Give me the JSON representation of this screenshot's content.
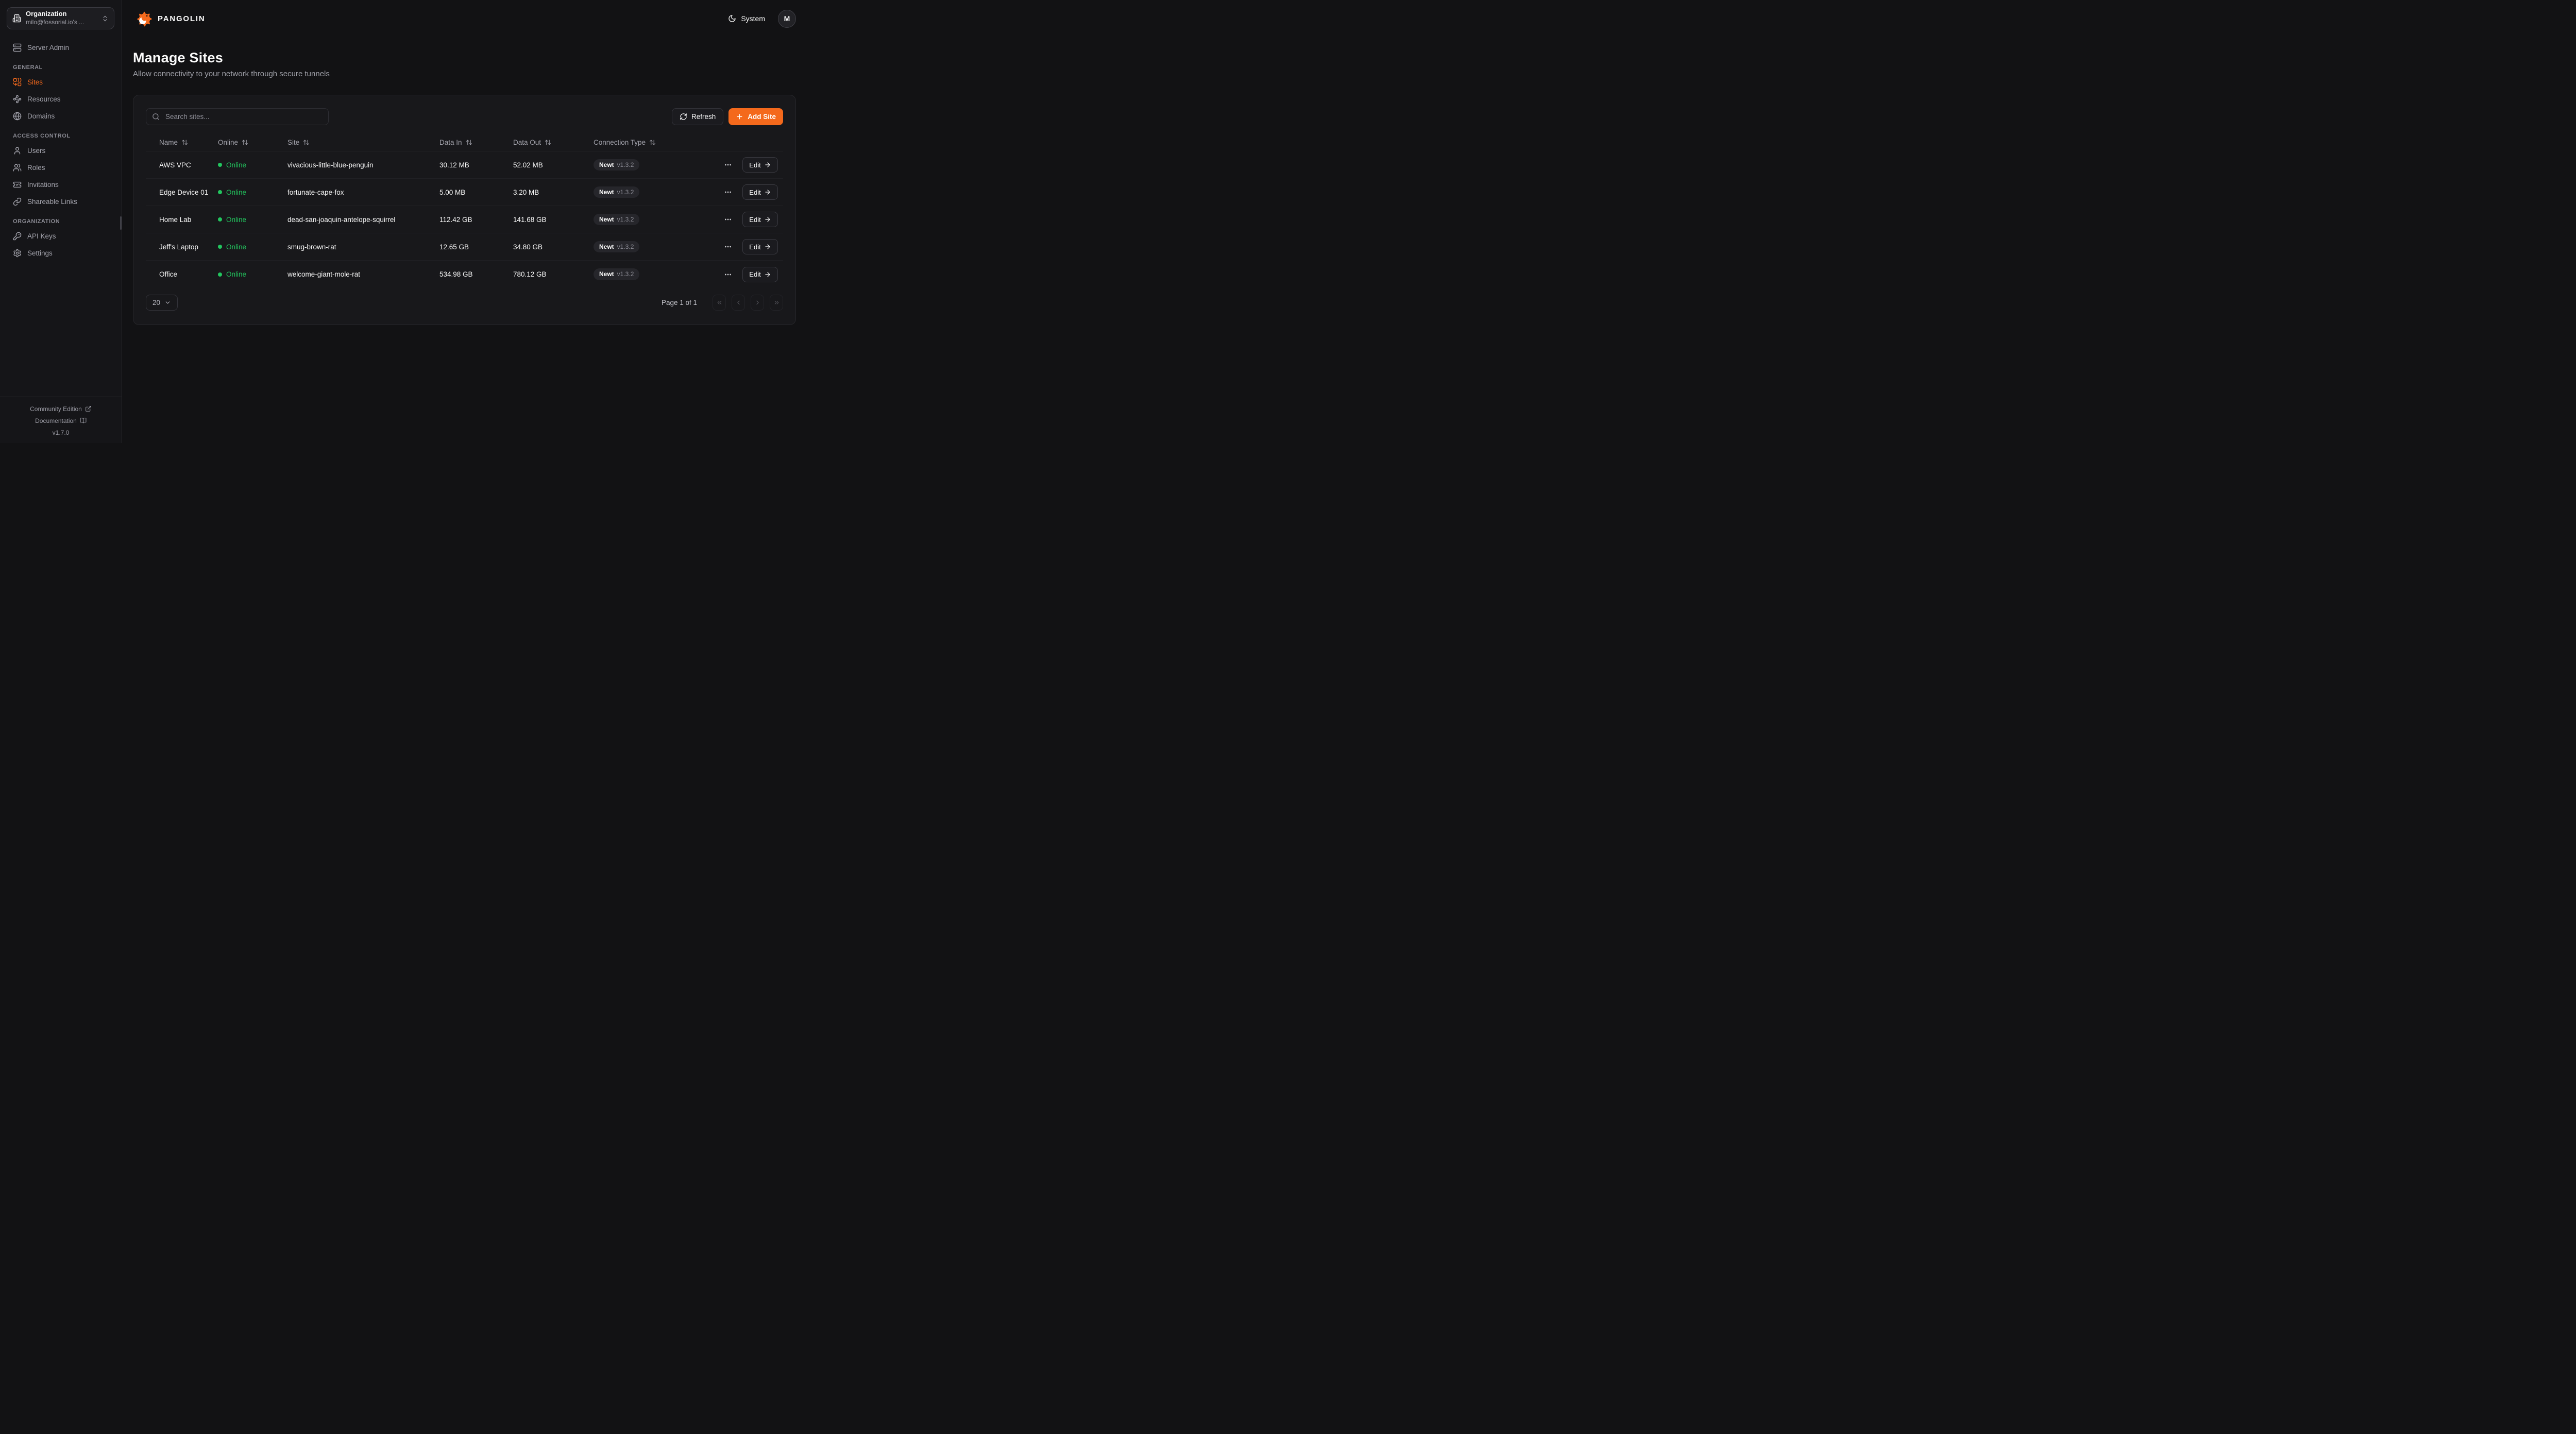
{
  "colors": {
    "accent": "#f4691c",
    "online_green": "#22c55e",
    "background": "#121214",
    "card_background": "#18181b"
  },
  "sidebar": {
    "org_switcher": {
      "title": "Organization",
      "subtitle": "milo@fossorial.io's ...",
      "icon": "building-icon",
      "chevron_icon": "chevrons-up-down-icon"
    },
    "nav": [
      {
        "heading": null,
        "items": [
          {
            "label": "Server Admin",
            "icon": "server-icon",
            "active": false
          }
        ]
      },
      {
        "heading": "GENERAL",
        "items": [
          {
            "label": "Sites",
            "icon": "combine-icon",
            "active": true
          },
          {
            "label": "Resources",
            "icon": "waypoints-icon",
            "active": false
          },
          {
            "label": "Domains",
            "icon": "globe-icon",
            "active": false
          }
        ]
      },
      {
        "heading": "ACCESS CONTROL",
        "items": [
          {
            "label": "Users",
            "icon": "user-icon",
            "active": false
          },
          {
            "label": "Roles",
            "icon": "users-icon",
            "active": false
          },
          {
            "label": "Invitations",
            "icon": "ticket-check-icon",
            "active": false
          },
          {
            "label": "Shareable Links",
            "icon": "link-icon",
            "active": false
          }
        ]
      },
      {
        "heading": "ORGANIZATION",
        "items": [
          {
            "label": "API Keys",
            "icon": "key-icon",
            "active": false
          },
          {
            "label": "Settings",
            "icon": "gear-icon",
            "active": false
          }
        ]
      }
    ],
    "footer": {
      "community_edition": "Community Edition",
      "community_icon": "external-link-icon",
      "documentation": "Documentation",
      "documentation_icon": "book-open-icon",
      "version": "v1.7.0"
    }
  },
  "topbar": {
    "brand": "PANGOLIN",
    "brand_icon": "pangolin-logo-icon",
    "theme_label": "System",
    "theme_icon": "moon-icon",
    "avatar_initial": "M"
  },
  "page": {
    "title": "Manage Sites",
    "subtitle": "Allow connectivity to your network through secure tunnels"
  },
  "toolbar": {
    "search_placeholder": "Search sites...",
    "search_icon": "search-icon",
    "refresh_label": "Refresh",
    "refresh_icon": "refresh-icon",
    "add_site_label": "Add Site",
    "add_site_icon": "plus-icon"
  },
  "table": {
    "columns": [
      {
        "label": "Name",
        "sortable": true
      },
      {
        "label": "Online",
        "sortable": true
      },
      {
        "label": "Site",
        "sortable": true
      },
      {
        "label": "Data In",
        "sortable": true
      },
      {
        "label": "Data Out",
        "sortable": true
      },
      {
        "label": "Connection Type",
        "sortable": true
      }
    ],
    "sort_icon": "arrow-up-down-icon",
    "row_menu_icon": "ellipsis-icon",
    "edit_arrow_icon": "arrow-right-icon",
    "rows": [
      {
        "name": "AWS VPC",
        "online": "Online",
        "site": "vivacious-little-blue-penguin",
        "data_in": "30.12 MB",
        "data_out": "52.02 MB",
        "connection_type": "Newt",
        "connection_version": "v1.3.2",
        "edit_label": "Edit"
      },
      {
        "name": "Edge Device 01",
        "online": "Online",
        "site": "fortunate-cape-fox",
        "data_in": "5.00 MB",
        "data_out": "3.20 MB",
        "connection_type": "Newt",
        "connection_version": "v1.3.2",
        "edit_label": "Edit"
      },
      {
        "name": "Home Lab",
        "online": "Online",
        "site": "dead-san-joaquin-antelope-squirrel",
        "data_in": "112.42 GB",
        "data_out": "141.68 GB",
        "connection_type": "Newt",
        "connection_version": "v1.3.2",
        "edit_label": "Edit"
      },
      {
        "name": "Jeff's Laptop",
        "online": "Online",
        "site": "smug-brown-rat",
        "data_in": "12.65 GB",
        "data_out": "34.80 GB",
        "connection_type": "Newt",
        "connection_version": "v1.3.2",
        "edit_label": "Edit"
      },
      {
        "name": "Office",
        "online": "Online",
        "site": "welcome-giant-mole-rat",
        "data_in": "534.98 GB",
        "data_out": "780.12 GB",
        "connection_type": "Newt",
        "connection_version": "v1.3.2",
        "edit_label": "Edit"
      }
    ]
  },
  "pagination": {
    "page_size": "20",
    "page_size_icon": "chevron-down-icon",
    "status": "Page 1 of 1",
    "buttons": [
      {
        "name": "first-page-button",
        "icon": "chevrons-left-icon"
      },
      {
        "name": "previous-page-button",
        "icon": "chevron-left-icon"
      },
      {
        "name": "next-page-button",
        "icon": "chevron-right-icon"
      },
      {
        "name": "last-page-button",
        "icon": "chevrons-right-icon"
      }
    ]
  }
}
